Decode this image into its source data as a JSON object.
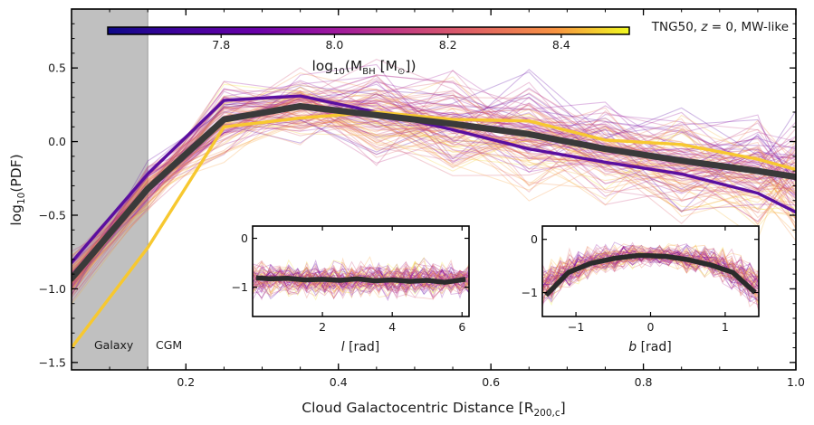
{
  "chart_data": {
    "type": "line",
    "xlabel": "Cloud Galactocentric Distance [R",
    "xlabel_sub": "200,c",
    "xlabel_close": "]",
    "ylabel": "log",
    "ylabel_sub": "10",
    "ylabel_rest": "(PDF)",
    "xlim": [
      0.05,
      1.0
    ],
    "ylim": [
      -1.55,
      0.9
    ],
    "xticks": [
      0.2,
      0.4,
      0.6,
      0.8,
      1.0
    ],
    "xtick_labels": [
      "0.2",
      "0.4",
      "0.6",
      "0.8",
      "1.0"
    ],
    "yticks": [
      -1.5,
      -1.0,
      -0.5,
      0.0,
      0.5
    ],
    "ytick_labels": [
      "−1.5",
      "−1.0",
      "−0.5",
      "0.0",
      "0.5"
    ],
    "annotation": "TNG50, z = 0, MW-like",
    "annotation_parts": [
      "TNG50, ",
      "z",
      " = 0, MW-like"
    ],
    "shaded_region": {
      "x0": 0.05,
      "x1": 0.15,
      "label": "Galaxy",
      "color": "#c0c0c0"
    },
    "cgm_label": "CGM",
    "colorbar": {
      "label": "log",
      "label_sub": "10",
      "label_rest": "(M",
      "label_sub2": "BH",
      "label_rest2": " [M",
      "label_sub3": "⊙",
      "label_close": "])",
      "range": [
        7.6,
        8.52
      ],
      "ticks": [
        7.8,
        8.0,
        8.2,
        8.4
      ],
      "tick_labels": [
        "7.8",
        "8.0",
        "8.2",
        "8.4"
      ],
      "colormap": "plasma"
    },
    "x": [
      0.05,
      0.15,
      0.25,
      0.35,
      0.45,
      0.55,
      0.65,
      0.75,
      0.85,
      0.95,
      1.0
    ],
    "series": [
      {
        "name": "median",
        "color": "#3a3a3a",
        "values": [
          -0.93,
          -0.32,
          0.15,
          0.24,
          0.18,
          0.12,
          0.05,
          -0.05,
          -0.13,
          -0.2,
          -0.24
        ]
      },
      {
        "name": "low-mass",
        "color": "#5a0fa0",
        "values": [
          -0.82,
          -0.22,
          0.28,
          0.31,
          0.2,
          0.08,
          -0.05,
          -0.14,
          -0.22,
          -0.35,
          -0.48
        ]
      },
      {
        "name": "high-mass",
        "color": "#f7c830",
        "values": [
          -1.4,
          -0.72,
          0.1,
          0.16,
          0.2,
          0.15,
          0.14,
          0.01,
          -0.02,
          -0.12,
          -0.19
        ]
      }
    ],
    "background_lines_count": 110,
    "insets": [
      {
        "name": "inset-l",
        "xlabel": "l",
        "xlabel_rest": " [rad]",
        "xlim": [
          0.0,
          6.2
        ],
        "ylim": [
          -1.6,
          0.25
        ],
        "xticks": [
          2,
          4,
          6
        ],
        "xtick_labels": [
          "2",
          "4",
          "6"
        ],
        "yticks": [
          0,
          -1
        ],
        "ytick_labels": [
          "0",
          "−1"
        ],
        "median_x": [
          0.1,
          0.5,
          1.0,
          1.5,
          2.0,
          2.5,
          3.0,
          3.5,
          4.0,
          4.5,
          5.0,
          5.5,
          6.1
        ],
        "median_y": [
          -0.81,
          -0.83,
          -0.82,
          -0.85,
          -0.84,
          -0.86,
          -0.83,
          -0.87,
          -0.85,
          -0.88,
          -0.86,
          -0.9,
          -0.84
        ]
      },
      {
        "name": "inset-b",
        "xlabel": "b",
        "xlabel_rest": " [rad]",
        "xlim": [
          -1.45,
          1.45
        ],
        "ylim": [
          -1.45,
          0.25
        ],
        "xticks": [
          -1,
          0,
          1
        ],
        "xtick_labels": [
          "−1",
          "0",
          "1"
        ],
        "yticks": [
          0,
          -1
        ],
        "ytick_labels": [
          "0",
          "−1"
        ],
        "median_x": [
          -1.4,
          -1.1,
          -0.8,
          -0.5,
          -0.15,
          0.2,
          0.5,
          0.8,
          1.1,
          1.4
        ],
        "median_y": [
          -1.05,
          -0.62,
          -0.45,
          -0.36,
          -0.3,
          -0.32,
          -0.38,
          -0.48,
          -0.62,
          -1.0
        ]
      }
    ]
  }
}
